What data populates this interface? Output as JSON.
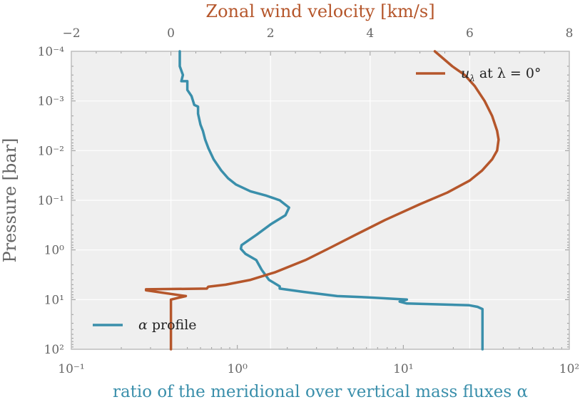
{
  "chart_data": {
    "type": "line",
    "title": "",
    "x_top": {
      "label": "Zonal wind velocity [km/s]",
      "lim": [
        -2,
        8
      ],
      "ticks": [
        -2,
        0,
        2,
        4,
        6,
        8
      ],
      "tick_labels": [
        "−2",
        "0",
        "2",
        "4",
        "6",
        "8"
      ]
    },
    "x_bottom": {
      "label": "ratio of the meridional over vertical mass fluxes α",
      "scale": "log",
      "lim": [
        0.1,
        100
      ],
      "ticks": [
        0.1,
        1,
        10,
        100
      ],
      "tick_labels": [
        "10⁻¹",
        "10⁰",
        "10¹",
        "10²"
      ]
    },
    "y": {
      "label": "Pressure [bar]",
      "scale": "log",
      "inverted": true,
      "lim": [
        0.0001,
        100
      ],
      "ticks": [
        0.0001,
        0.001,
        0.01,
        0.1,
        1,
        10,
        100
      ],
      "tick_labels": [
        "10⁻⁴",
        "10⁻³",
        "10⁻²",
        "10⁻¹",
        "10⁰",
        "10¹",
        "10²"
      ]
    },
    "grid": true,
    "series": [
      {
        "name": "α profile",
        "axis": "bottom",
        "color": "#3a8fab",
        "legend_position": "bottom-left",
        "points": [
          [
            0.45,
            0.0001
          ],
          [
            0.45,
            0.0002
          ],
          [
            0.47,
            0.0003
          ],
          [
            0.46,
            0.0004
          ],
          [
            0.5,
            0.0004
          ],
          [
            0.5,
            0.0006
          ],
          [
            0.53,
            0.0008
          ],
          [
            0.55,
            0.0012
          ],
          [
            0.58,
            0.0013
          ],
          [
            0.58,
            0.0018
          ],
          [
            0.6,
            0.003
          ],
          [
            0.62,
            0.004
          ],
          [
            0.64,
            0.006
          ],
          [
            0.67,
            0.009
          ],
          [
            0.72,
            0.015
          ],
          [
            0.8,
            0.025
          ],
          [
            0.88,
            0.036
          ],
          [
            0.98,
            0.048
          ],
          [
            1.2,
            0.066
          ],
          [
            1.5,
            0.081
          ],
          [
            1.8,
            0.1
          ],
          [
            2.05,
            0.14
          ],
          [
            1.95,
            0.2
          ],
          [
            1.6,
            0.3
          ],
          [
            1.3,
            0.5
          ],
          [
            1.06,
            0.8
          ],
          [
            1.05,
            0.95
          ],
          [
            1.12,
            1.2
          ],
          [
            1.3,
            1.6
          ],
          [
            1.4,
            2.5
          ],
          [
            1.55,
            4
          ],
          [
            1.8,
            5.4
          ],
          [
            1.8,
            6
          ],
          [
            2.5,
            7
          ],
          [
            4,
            8.5
          ],
          [
            6,
            9
          ],
          [
            10.5,
            10
          ],
          [
            9.5,
            11
          ],
          [
            10.5,
            12
          ],
          [
            25,
            13
          ],
          [
            28,
            14
          ],
          [
            30,
            15.5
          ],
          [
            30,
            20
          ],
          [
            30,
            100
          ]
        ]
      },
      {
        "name": "uλ at λ = 0°",
        "axis": "top",
        "color": "#b5562b",
        "legend_position": "top-right",
        "points": [
          [
            5.3,
            0.0001
          ],
          [
            5.65,
            0.0002
          ],
          [
            5.9,
            0.0003
          ],
          [
            6.1,
            0.0005
          ],
          [
            6.3,
            0.001
          ],
          [
            6.45,
            0.002
          ],
          [
            6.55,
            0.004
          ],
          [
            6.58,
            0.006
          ],
          [
            6.55,
            0.01
          ],
          [
            6.45,
            0.015
          ],
          [
            6.25,
            0.025
          ],
          [
            6.0,
            0.04
          ],
          [
            5.55,
            0.07
          ],
          [
            5.0,
            0.12
          ],
          [
            4.3,
            0.25
          ],
          [
            3.7,
            0.5
          ],
          [
            3.2,
            0.9
          ],
          [
            2.7,
            1.6
          ],
          [
            2.1,
            2.8
          ],
          [
            1.6,
            4
          ],
          [
            1.1,
            5
          ],
          [
            0.75,
            5.5
          ],
          [
            0.72,
            6
          ],
          [
            -0.5,
            6.2
          ],
          [
            -0.5,
            6.5
          ],
          [
            0.3,
            8.5
          ],
          [
            0.0,
            10
          ],
          [
            0.0,
            20
          ],
          [
            0.0,
            100
          ]
        ]
      }
    ]
  },
  "legend": {
    "alpha_symbol": "α",
    "alpha_rest": "profile",
    "u_symbol": "u",
    "u_subscript": "λ",
    "u_at": "at",
    "u_expression": "λ = 0°"
  }
}
